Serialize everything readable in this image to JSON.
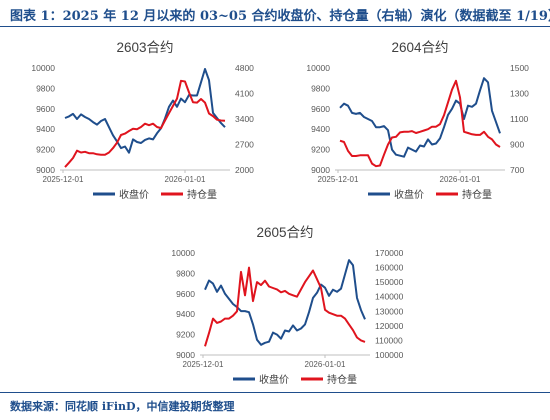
{
  "header": {
    "title": "图表 1：2025 年 12 月以来的 03~05 合约收盘价、持仓量（右轴）演化（数据截至 1/19）"
  },
  "source": {
    "text": "数据来源：同花顺 iFinD，中信建投期货整理"
  },
  "colors": {
    "close": "#1f4e8c",
    "oi": "#e0141e",
    "axis": "#bfbfbf",
    "text": "#595959"
  },
  "legend": {
    "close": "收盘价",
    "oi": "持仓量"
  },
  "chart_data": [
    {
      "id": "c2603",
      "type": "line",
      "title": "2603合约",
      "x_tick_labels": [
        "2025-12-01",
        "2026-01-01"
      ],
      "y_left_ticks": [
        "10000",
        "9800",
        "9600",
        "9400",
        "9200",
        "9000"
      ],
      "y_right_ticks": [
        "4800",
        "4100",
        "3400",
        "2700",
        "2000"
      ],
      "ylim_left": [
        9000,
        10000
      ],
      "ylim_right": [
        2000,
        4800
      ],
      "series": [
        {
          "key": "close",
          "axis": "left",
          "values": [
            9510,
            9525,
            9550,
            9500,
            9545,
            9520,
            9500,
            9470,
            9445,
            9480,
            9500,
            9420,
            9340,
            9280,
            9215,
            9230,
            9170,
            9300,
            9275,
            9265,
            9295,
            9310,
            9300,
            9360,
            9410,
            9505,
            9620,
            9680,
            9620,
            9700,
            9665,
            9735,
            9730,
            9730,
            9860,
            9990,
            9880,
            9560,
            9510,
            9460,
            9420
          ]
        },
        {
          "key": "oi",
          "axis": "right",
          "values": [
            2080,
            2200,
            2330,
            2530,
            2480,
            2500,
            2460,
            2460,
            2430,
            2420,
            2420,
            2480,
            2600,
            2750,
            2960,
            3000,
            3070,
            3130,
            3120,
            3180,
            3270,
            3230,
            3270,
            3180,
            3150,
            3360,
            3560,
            3760,
            3960,
            4450,
            4430,
            4130,
            3860,
            3850,
            3950,
            3850,
            3550,
            3480,
            3380,
            3360,
            3350
          ]
        }
      ]
    },
    {
      "id": "c2604",
      "type": "line",
      "title": "2604合约",
      "x_tick_labels": [
        "2025-12-01",
        "2026-01-01"
      ],
      "y_left_ticks": [
        "10000",
        "9800",
        "9600",
        "9400",
        "9200",
        "9000"
      ],
      "y_right_ticks": [
        "1500",
        "1300",
        "1100",
        "900",
        "700"
      ],
      "ylim_left": [
        9000,
        10000
      ],
      "ylim_right": [
        700,
        1500
      ],
      "series": [
        {
          "key": "close",
          "axis": "left",
          "values": [
            9610,
            9650,
            9630,
            9560,
            9550,
            9560,
            9520,
            9500,
            9480,
            9420,
            9420,
            9430,
            9390,
            9200,
            9150,
            9140,
            9130,
            9220,
            9200,
            9180,
            9240,
            9230,
            9300,
            9250,
            9260,
            9310,
            9420,
            9540,
            9600,
            9680,
            9650,
            9500,
            9630,
            9620,
            9650,
            9780,
            9900,
            9860,
            9580,
            9470,
            9360
          ]
        },
        {
          "key": "oi",
          "axis": "right",
          "values": [
            930,
            920,
            850,
            810,
            810,
            815,
            815,
            815,
            750,
            730,
            735,
            820,
            900,
            955,
            960,
            995,
            1000,
            1000,
            1005,
            990,
            1000,
            1010,
            1020,
            1040,
            1040,
            1060,
            1130,
            1230,
            1330,
            1400,
            1270,
            1000,
            990,
            980,
            975,
            975,
            1000,
            960,
            940,
            900,
            880
          ]
        }
      ]
    },
    {
      "id": "c2605",
      "type": "line",
      "title": "2605合约",
      "x_tick_labels": [
        "2025-12-01",
        "2026-01-01"
      ],
      "y_left_ticks": [
        "10000",
        "9800",
        "9600",
        "9400",
        "9200",
        "9000"
      ],
      "y_right_ticks": [
        "170000",
        "160000",
        "150000",
        "140000",
        "130000",
        "120000",
        "110000",
        "100000"
      ],
      "ylim_left": [
        9000,
        10000
      ],
      "ylim_right": [
        100000,
        170000
      ],
      "series": [
        {
          "key": "close",
          "axis": "left",
          "values": [
            9640,
            9730,
            9700,
            9620,
            9680,
            9600,
            9550,
            9500,
            9470,
            9430,
            9430,
            9420,
            9300,
            9150,
            9100,
            9120,
            9130,
            9220,
            9200,
            9160,
            9240,
            9230,
            9290,
            9240,
            9260,
            9300,
            9420,
            9560,
            9610,
            9690,
            9660,
            9580,
            9640,
            9620,
            9650,
            9790,
            9930,
            9880,
            9560,
            9440,
            9350
          ]
        },
        {
          "key": "oi",
          "axis": "right",
          "values": [
            106000,
            115000,
            125000,
            122000,
            123000,
            125000,
            125000,
            127000,
            130000,
            157000,
            141000,
            160000,
            137000,
            150000,
            148000,
            151000,
            147000,
            146000,
            145000,
            143000,
            144000,
            142000,
            141000,
            140000,
            145000,
            150000,
            154000,
            158000,
            152000,
            146000,
            131000,
            129000,
            128000,
            127000,
            127000,
            125000,
            121000,
            117000,
            112000,
            110000,
            109000
          ]
        }
      ]
    }
  ]
}
